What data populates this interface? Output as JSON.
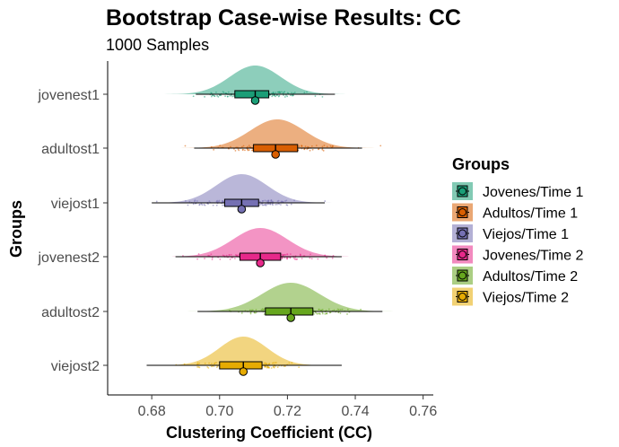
{
  "chart_data": {
    "type": "raincloud",
    "title": "Bootstrap Case-wise Results: CC",
    "subtitle": "1000 Samples",
    "xlabel": "Clustering Coefficient (CC)",
    "ylabel": "Groups",
    "xlim": [
      0.667,
      0.763
    ],
    "x_ticks": [
      "0.68",
      "0.70",
      "0.72",
      "0.74",
      "0.76"
    ],
    "x_tick_values": [
      0.68,
      0.7,
      0.72,
      0.74,
      0.76
    ],
    "grid": false,
    "legend_position": "right",
    "legend_title": "Groups",
    "categories": [
      "jovenest1",
      "adultost1",
      "viejost1",
      "jovenest2",
      "adultost2",
      "viejost2"
    ],
    "series": [
      {
        "category": "jovenest1",
        "name": "Jovenes/Time 1",
        "color": "#1b9e77",
        "mean": 0.7105,
        "sd": 0.0075,
        "q1": 0.7045,
        "median": 0.7105,
        "q3": 0.7145,
        "whisker_low": 0.693,
        "whisker_high": 0.734,
        "point": 0.7105,
        "range": [
          0.6765,
          0.749
        ]
      },
      {
        "category": "adultost1",
        "name": "Adultos/Time 1",
        "color": "#d95f02",
        "mean": 0.717,
        "sd": 0.008,
        "q1": 0.71,
        "median": 0.7165,
        "q3": 0.723,
        "whisker_low": 0.6925,
        "whisker_high": 0.742,
        "point": 0.7165,
        "range": [
          0.687,
          0.748
        ]
      },
      {
        "category": "viejost1",
        "name": "Viejos/Time 1",
        "color": "#7570b3",
        "mean": 0.7065,
        "sd": 0.0075,
        "q1": 0.7015,
        "median": 0.7065,
        "q3": 0.7115,
        "whisker_low": 0.68,
        "whisker_high": 0.731,
        "point": 0.7065,
        "range": [
          0.6795,
          0.7345
        ]
      },
      {
        "category": "jovenest2",
        "name": "Jovenes/Time 2",
        "color": "#e7298a",
        "mean": 0.712,
        "sd": 0.008,
        "q1": 0.706,
        "median": 0.712,
        "q3": 0.718,
        "whisker_low": 0.687,
        "whisker_high": 0.736,
        "point": 0.712,
        "range": [
          0.686,
          0.738
        ]
      },
      {
        "category": "adultost2",
        "name": "Adultos/Time 2",
        "color": "#66a61e",
        "mean": 0.721,
        "sd": 0.0085,
        "q1": 0.7135,
        "median": 0.721,
        "q3": 0.7275,
        "whisker_low": 0.6935,
        "whisker_high": 0.748,
        "point": 0.721,
        "range": [
          0.68,
          0.756
        ]
      },
      {
        "category": "viejost2",
        "name": "Viejos/Time 2",
        "color": "#e6ab02",
        "mean": 0.707,
        "sd": 0.007,
        "q1": 0.7,
        "median": 0.707,
        "q3": 0.7125,
        "whisker_low": 0.6785,
        "whisker_high": 0.736,
        "point": 0.707,
        "range": [
          0.679,
          0.741
        ]
      }
    ]
  }
}
